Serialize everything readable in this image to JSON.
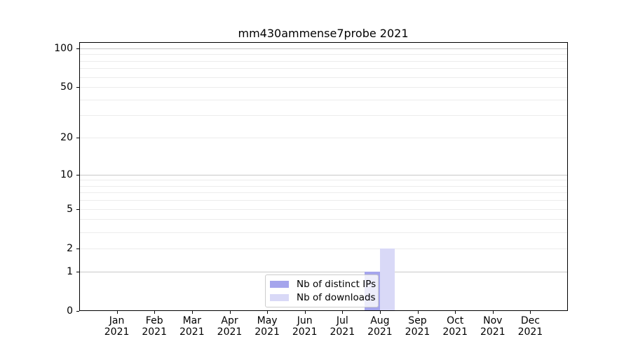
{
  "chart_data": {
    "type": "bar",
    "title": "mm430ammense7probe 2021",
    "categories": [
      "Jan",
      "Feb",
      "Mar",
      "Apr",
      "May",
      "Jun",
      "Jul",
      "Aug",
      "Sep",
      "Oct",
      "Nov",
      "Dec"
    ],
    "x_label_line2": "2021",
    "series": [
      {
        "name": "Nb of distinct IPs",
        "color": "#a5a5ec",
        "values": [
          0,
          0,
          0,
          0,
          0,
          0,
          0,
          1,
          0,
          0,
          0,
          0
        ]
      },
      {
        "name": "Nb of downloads",
        "color": "#d9d9f7",
        "values": [
          0,
          0,
          0,
          0,
          0,
          0,
          0,
          2,
          0,
          0,
          0,
          0
        ]
      }
    ],
    "y_axis": {
      "scale": "log1p",
      "ticks": [
        0,
        1,
        2,
        5,
        10,
        20,
        50,
        100
      ],
      "range": [
        0,
        111
      ],
      "grid_values": [
        1,
        2,
        3,
        4,
        5,
        6,
        7,
        8,
        9,
        10,
        20,
        30,
        40,
        50,
        60,
        70,
        80,
        90,
        100
      ],
      "grid_major_values": [
        1,
        10,
        100
      ]
    },
    "legend": {
      "entries": [
        "Nb of distinct IPs",
        "Nb of downloads"
      ],
      "position": "lower-center"
    },
    "colors": {
      "grid_minor": "#ececec",
      "grid_major": "#c8c8c8",
      "spine": "#000000",
      "text": "#000000",
      "legend_border": "#cccccc",
      "legend_bg": "rgba(255,255,255,0.8)"
    },
    "grid": true
  }
}
